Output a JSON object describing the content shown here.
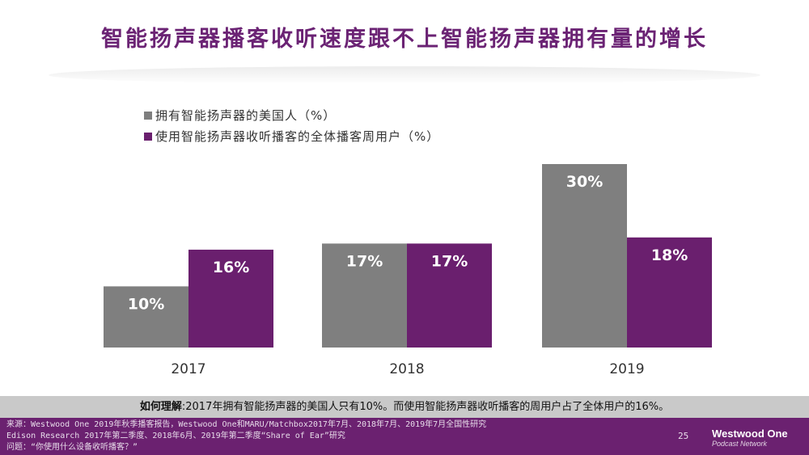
{
  "title": "智能扬声器播客收听速度跟不上智能扬声器拥有量的增长",
  "chart_data": {
    "type": "bar",
    "categories": [
      "2017",
      "2018",
      "2019"
    ],
    "series": [
      {
        "name": "拥有智能扬声器的美国人（%）",
        "values": [
          10,
          17,
          30
        ],
        "labels": [
          "10%",
          "17%",
          "30%"
        ],
        "color": "#7f7f7f"
      },
      {
        "name": "使用智能扬声器收听播客的全体播客周用户（%）",
        "values": [
          16,
          17,
          18
        ],
        "labels": [
          "16%",
          "17%",
          "18%"
        ],
        "color": "#6a1f6e"
      }
    ],
    "ylim": [
      0,
      30
    ],
    "legend": "top-left"
  },
  "strip": {
    "label": "如何理解",
    "text": ":2017年拥有智能扬声器的美国人只有10%。而使用智能扬声器收听播客的周用户占了全体用户的16%。"
  },
  "footer": {
    "lines": [
      "来源：Westwood One 2019年秋季播客报告，Westwood One和MARU/Matchbox2017年7月、2018年7月、2019年7月全国性研究",
      "Edison Research 2017年第二季度、2018年6月、2019年第二季度“Share of Ear”研究",
      "问题：“你使用什么设备收听播客？”"
    ],
    "page": "25",
    "logo_main": "Westwood One",
    "logo_sub": "Podcast Network"
  }
}
